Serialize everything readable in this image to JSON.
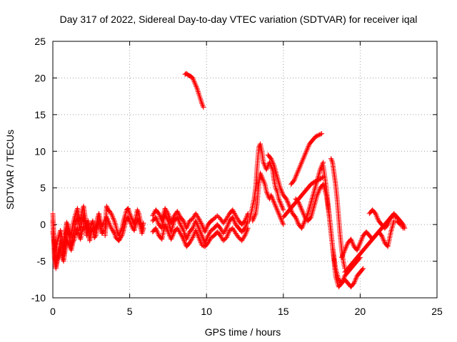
{
  "chart_data": {
    "type": "scatter",
    "title": "Day 317 of 2022, Sidereal Day-to-day VTEC variation (SDTVAR) for receiver iqal",
    "xlabel": "GPS time / hours",
    "ylabel": "SDTVAR / TECUs",
    "xlim": [
      0,
      25
    ],
    "ylim": [
      -10,
      25
    ],
    "xticks": [
      0,
      5,
      10,
      15,
      20,
      25
    ],
    "yticks": [
      -10,
      -5,
      0,
      5,
      10,
      15,
      20,
      25
    ],
    "grid": true,
    "marker": "+",
    "color": "#ff0000",
    "series": [
      {
        "name": "seg01",
        "x": [
          0.0,
          0.1,
          0.2,
          0.3,
          0.4,
          0.5,
          0.6,
          0.7,
          0.8,
          0.9,
          1.0,
          1.1,
          1.2,
          1.3,
          1.4,
          1.5,
          1.6,
          1.7,
          1.8,
          1.9,
          2.0,
          2.1,
          2.2,
          2.3,
          2.4,
          2.5,
          2.6,
          2.7,
          2.8,
          2.9,
          3.0,
          3.1,
          3.2,
          3.3
        ],
        "y": [
          1.5,
          -3.0,
          -5.8,
          -4.5,
          -3.5,
          -2.0,
          -3.0,
          -4.2,
          -2.5,
          -0.5,
          -1.0,
          -2.0,
          -2.8,
          -1.5,
          -0.8,
          0.5,
          1.0,
          0.0,
          -0.8,
          0.5,
          1.2,
          0.2,
          -1.5,
          -0.5,
          -2.2,
          -1.0,
          -0.5,
          -1.8,
          -1.5,
          -0.2,
          0.5,
          -0.5,
          -1.2,
          -0.8
        ]
      },
      {
        "name": "seg02",
        "x": [
          0.0,
          0.1,
          0.2,
          0.3,
          0.4,
          0.5,
          0.6,
          0.7,
          0.8,
          0.9,
          1.0,
          1.1,
          1.2,
          1.3,
          1.4,
          1.5,
          1.6,
          1.7,
          1.8,
          1.9,
          2.0,
          2.1,
          2.2,
          2.3,
          2.4,
          2.5,
          2.6,
          2.7,
          2.8,
          2.9,
          3.0,
          3.1,
          3.2,
          3.3
        ],
        "y": [
          -1.0,
          -2.5,
          -3.5,
          -2.2,
          -1.5,
          -0.8,
          -1.8,
          -3.2,
          -1.2,
          0.3,
          -0.2,
          -1.0,
          -1.5,
          0.0,
          0.8,
          1.5,
          2.2,
          1.0,
          0.5,
          1.8,
          2.5,
          1.0,
          -0.5,
          0.5,
          -1.0,
          0.0,
          0.5,
          -0.8,
          -0.5,
          0.8,
          1.5,
          0.5,
          -0.3,
          0.3
        ]
      },
      {
        "name": "seg03",
        "x": [
          0.0,
          0.1,
          0.2,
          0.3,
          0.4,
          0.5,
          0.6,
          0.7,
          0.8,
          0.9,
          1.0,
          1.1,
          1.2,
          1.3,
          1.4,
          1.5,
          1.6,
          1.7,
          1.8,
          1.9,
          2.0
        ],
        "y": [
          0.5,
          -4.5,
          -6.0,
          -4.8,
          -4.0,
          -3.2,
          -4.5,
          -5.0,
          -3.5,
          -2.0,
          -2.5,
          -3.0,
          -3.5,
          -2.5,
          -2.0,
          -1.0,
          -0.5,
          -1.5,
          -2.0,
          -1.0,
          -0.3
        ]
      },
      {
        "name": "seg04",
        "x": [
          3.4,
          3.5,
          3.6,
          3.7,
          3.8,
          3.9,
          4.0,
          4.1,
          4.2,
          4.3,
          4.4,
          4.5,
          4.6,
          4.7,
          4.8,
          4.9,
          5.0,
          5.1,
          5.2,
          5.3,
          5.4,
          5.5,
          5.6,
          5.7,
          5.8,
          5.9
        ],
        "y": [
          -0.5,
          2.5,
          2.0,
          1.8,
          1.5,
          1.0,
          0.5,
          -0.2,
          -1.0,
          -1.5,
          -1.0,
          -0.5,
          0.5,
          1.2,
          2.0,
          2.2,
          1.5,
          1.0,
          0.5,
          0.0,
          1.0,
          2.0,
          1.5,
          0.5,
          -0.5,
          0.2
        ]
      },
      {
        "name": "seg05",
        "x": [
          3.4,
          3.5,
          3.6,
          3.7,
          3.8,
          3.9,
          4.0,
          4.1,
          4.2,
          4.3,
          4.4,
          4.5,
          4.6,
          4.7,
          4.8,
          4.9,
          5.0,
          5.1,
          5.2,
          5.3,
          5.4,
          5.5,
          5.6,
          5.7,
          5.8,
          5.9
        ],
        "y": [
          -1.5,
          1.0,
          0.5,
          0.0,
          -0.5,
          -0.8,
          -1.2,
          -1.8,
          -2.0,
          -2.2,
          -1.8,
          -1.5,
          -0.8,
          0.0,
          0.8,
          1.0,
          0.5,
          0.0,
          -0.5,
          -0.8,
          0.0,
          0.8,
          0.5,
          -0.3,
          -1.2,
          -0.5
        ]
      },
      {
        "name": "seg06",
        "x": [
          6.5,
          6.7,
          6.9,
          7.1,
          7.3,
          7.5,
          7.7,
          7.9,
          8.1,
          8.3,
          8.5,
          8.7,
          8.9,
          9.1,
          9.3,
          9.5,
          9.7,
          9.9,
          10.1,
          10.3,
          10.5,
          10.7,
          10.9,
          11.1,
          11.3,
          11.5,
          11.7,
          11.9,
          12.1,
          12.3,
          12.5,
          12.7
        ],
        "y": [
          0.5,
          1.0,
          0.0,
          -0.5,
          1.5,
          0.5,
          -1.0,
          0.5,
          1.0,
          0.0,
          -0.8,
          -2.0,
          -1.0,
          -0.5,
          0.5,
          -0.5,
          -1.5,
          -2.5,
          -1.5,
          -0.8,
          -0.5,
          0.0,
          -0.5,
          -1.2,
          -0.5,
          0.5,
          1.0,
          0.0,
          -0.5,
          -1.0,
          -0.5,
          0.5
        ]
      },
      {
        "name": "seg07",
        "x": [
          6.5,
          6.7,
          6.9,
          7.1,
          7.3,
          7.5,
          7.7,
          7.9,
          8.1,
          8.3,
          8.5,
          8.7,
          8.9,
          9.1,
          9.3,
          9.5,
          9.7,
          9.9,
          10.1,
          10.3,
          10.5,
          10.7,
          10.9,
          11.1,
          11.3,
          11.5,
          11.7,
          11.9,
          12.1,
          12.3,
          12.5,
          12.7
        ],
        "y": [
          -1.0,
          -0.5,
          -1.5,
          -2.0,
          0.0,
          -1.0,
          -2.0,
          -1.0,
          -0.5,
          -1.2,
          -2.0,
          -3.0,
          -2.5,
          -1.8,
          -0.8,
          -1.8,
          -2.8,
          -3.0,
          -2.5,
          -1.8,
          -1.5,
          -1.0,
          -1.5,
          -2.2,
          -1.8,
          -0.8,
          -0.5,
          -1.2,
          -1.8,
          -2.2,
          -1.5,
          -0.5
        ]
      },
      {
        "name": "seg08",
        "x": [
          6.5,
          6.7,
          6.9,
          7.1,
          7.3,
          7.5,
          7.7,
          7.9,
          8.1,
          8.3,
          8.5,
          8.7,
          8.9,
          9.1,
          9.3,
          9.5,
          9.7,
          9.9,
          10.1,
          10.3,
          10.5,
          10.7,
          10.9,
          11.1,
          11.3,
          11.5,
          11.7,
          11.9,
          12.1,
          12.3,
          12.5,
          12.7
        ],
        "y": [
          1.2,
          2.0,
          1.5,
          0.5,
          2.2,
          1.5,
          0.2,
          1.2,
          1.8,
          1.0,
          0.5,
          -0.5,
          0.5,
          0.8,
          1.5,
          0.8,
          0.0,
          -1.0,
          0.0,
          0.5,
          0.8,
          1.2,
          0.8,
          0.2,
          0.8,
          1.5,
          2.0,
          1.2,
          0.5,
          0.0,
          0.5,
          1.5
        ]
      },
      {
        "name": "seg09",
        "x": [
          8.6,
          8.7,
          8.8,
          8.9,
          9.0,
          9.1,
          9.2,
          9.3,
          9.4,
          9.5,
          9.6,
          9.7,
          9.8
        ],
        "y": [
          20.5,
          20.6,
          20.4,
          20.3,
          20.2,
          20.0,
          19.5,
          19.0,
          18.5,
          17.8,
          17.2,
          16.5,
          16.0
        ]
      },
      {
        "name": "seg10",
        "x": [
          12.8,
          12.9,
          13.0,
          13.1,
          13.2,
          13.3,
          13.4,
          13.5,
          13.6,
          13.7,
          13.8,
          13.9,
          14.0,
          14.1,
          14.2,
          14.3,
          14.4,
          14.5,
          14.6,
          14.7,
          14.8,
          14.9,
          15.0
        ],
        "y": [
          0.5,
          1.5,
          2.5,
          3.5,
          5.0,
          8.0,
          10.5,
          11.0,
          10.0,
          8.5,
          8.0,
          7.5,
          8.0,
          8.5,
          8.0,
          7.5,
          6.0,
          5.0,
          4.5,
          3.5,
          3.0,
          2.5,
          2.0
        ]
      },
      {
        "name": "seg11",
        "x": [
          13.0,
          13.1,
          13.2,
          13.3,
          13.4,
          13.5,
          13.6,
          13.7,
          13.8,
          13.9,
          14.0,
          14.1,
          14.2,
          14.3,
          14.4,
          14.5,
          14.6,
          14.7,
          14.8,
          14.9,
          15.0
        ],
        "y": [
          0.5,
          1.0,
          1.5,
          3.0,
          5.5,
          7.0,
          6.5,
          6.0,
          5.5,
          4.5,
          4.0,
          3.5,
          4.0,
          3.5,
          3.0,
          2.5,
          2.0,
          1.5,
          1.0,
          0.5,
          0.0
        ]
      },
      {
        "name": "seg12",
        "x": [
          14.0,
          14.2,
          14.4,
          14.6,
          14.8,
          15.0,
          15.2,
          15.4,
          15.6,
          15.8,
          16.0,
          16.2,
          16.4,
          16.6,
          16.8,
          17.0,
          17.2,
          17.4,
          17.6
        ],
        "y": [
          9.5,
          9.0,
          8.0,
          6.5,
          5.0,
          4.0,
          3.5,
          2.5,
          1.5,
          1.0,
          0.0,
          -0.5,
          0.5,
          1.5,
          3.0,
          4.5,
          6.0,
          7.5,
          8.5
        ]
      },
      {
        "name": "seg13",
        "x": [
          15.0,
          15.2,
          15.4,
          15.6,
          15.8,
          16.0,
          16.2,
          16.4,
          16.6,
          16.8,
          17.0,
          17.2,
          17.4,
          17.6
        ],
        "y": [
          1.0,
          1.5,
          2.0,
          2.5,
          3.0,
          3.5,
          4.0,
          4.5,
          5.0,
          5.5,
          5.8,
          6.0,
          6.2,
          6.5
        ]
      },
      {
        "name": "seg14",
        "x": [
          15.5,
          15.7,
          15.9,
          16.1,
          16.3,
          16.5,
          16.7,
          16.9,
          17.1,
          17.3,
          17.5
        ],
        "y": [
          5.5,
          6.0,
          7.0,
          8.0,
          9.0,
          10.0,
          11.0,
          11.5,
          12.0,
          12.2,
          12.4
        ]
      },
      {
        "name": "seg15",
        "x": [
          15.8,
          16.0,
          16.2,
          16.4,
          16.6,
          16.8,
          17.0,
          17.2,
          17.4,
          17.6,
          17.8,
          18.0,
          18.2,
          18.4,
          18.6,
          18.8,
          19.0,
          19.2,
          19.4,
          19.6,
          19.8,
          20.0
        ],
        "y": [
          3.5,
          3.0,
          2.0,
          1.0,
          0.5,
          1.0,
          2.5,
          4.0,
          5.0,
          5.5,
          4.0,
          1.0,
          -3.0,
          -6.0,
          -7.5,
          -8.0,
          -7.0,
          -6.5,
          -6.0,
          -5.5,
          -5.0,
          -4.5
        ]
      },
      {
        "name": "seg16",
        "x": [
          17.6,
          17.8,
          18.0,
          18.2,
          18.4,
          18.6,
          18.8,
          19.0,
          19.2,
          19.4,
          19.6,
          19.8,
          20.0,
          20.2
        ],
        "y": [
          8.0,
          5.0,
          1.0,
          -3.0,
          -7.0,
          -8.5,
          -8.0,
          -7.5,
          -8.0,
          -8.5,
          -8.0,
          -7.0,
          -6.5,
          -6.0
        ]
      },
      {
        "name": "seg17",
        "x": [
          18.1,
          18.2,
          18.3,
          18.4,
          18.5,
          18.6,
          18.7,
          18.8,
          18.9,
          19.0
        ],
        "y": [
          9.0,
          8.5,
          7.0,
          5.5,
          3.5,
          1.0,
          -1.5,
          -3.5,
          -5.0,
          -6.0
        ]
      },
      {
        "name": "seg18",
        "x": [
          18.8,
          19.0,
          19.2,
          19.4,
          19.6,
          19.8,
          20.0,
          20.2,
          20.4,
          20.6,
          20.8,
          21.0,
          21.2,
          21.4,
          21.6,
          21.8,
          22.0,
          22.2,
          22.4,
          22.6,
          22.8,
          22.9
        ],
        "y": [
          -4.5,
          -3.5,
          -2.5,
          -2.0,
          -3.0,
          -3.5,
          -2.5,
          -1.5,
          -1.0,
          -1.5,
          -2.0,
          -1.5,
          -1.0,
          -1.5,
          -2.5,
          -3.0,
          -1.0,
          0.5,
          0.5,
          0.0,
          0.0,
          -0.5
        ]
      },
      {
        "name": "seg19",
        "x": [
          19.0,
          19.2,
          19.4,
          19.6,
          19.8,
          20.0,
          20.2,
          20.4,
          20.6,
          20.8,
          21.0,
          21.2,
          21.4,
          21.6,
          21.8,
          22.0,
          22.2,
          22.4,
          22.6,
          22.8
        ],
        "y": [
          -6.5,
          -6.0,
          -5.5,
          -5.0,
          -4.5,
          -4.0,
          -3.5,
          -3.0,
          -2.5,
          -2.0,
          -1.5,
          -1.0,
          -0.5,
          0.0,
          0.5,
          1.0,
          1.2,
          1.0,
          0.5,
          -0.5
        ]
      },
      {
        "name": "seg20",
        "x": [
          20.6,
          20.8,
          21.0,
          21.2,
          21.4,
          21.6,
          21.8,
          22.0,
          22.2,
          22.4,
          22.6,
          22.8
        ],
        "y": [
          1.5,
          2.0,
          1.5,
          0.5,
          0.0,
          -0.5,
          0.0,
          1.0,
          1.5,
          1.0,
          0.5,
          0.0
        ]
      }
    ]
  }
}
